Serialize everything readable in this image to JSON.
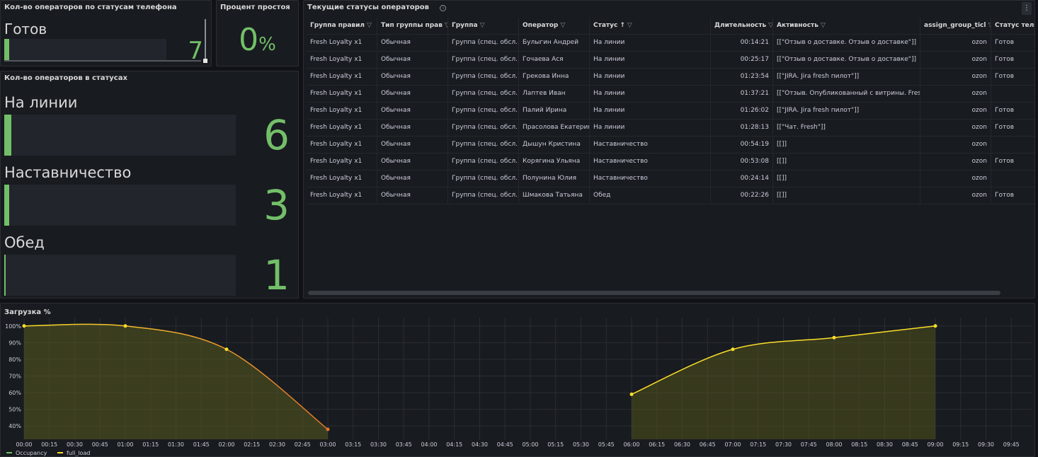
{
  "panels": {
    "phone_status": {
      "title": "Кол-во операторов по статусам телефона",
      "label": "Готов",
      "value": "7",
      "fill": 0.03
    },
    "idle": {
      "title": "Процент простоя",
      "value": "0",
      "unit": "%"
    },
    "status_counts": {
      "title": "Кол-во операторов в статусах",
      "items": [
        {
          "label": "На линии",
          "value": "6",
          "fill": 0.03
        },
        {
          "label": "Наставничество",
          "value": "3",
          "fill": 0.02
        },
        {
          "label": "Обед",
          "value": "1",
          "fill": 0.005
        }
      ]
    },
    "operators": {
      "title": "Текущие статусы операторов",
      "info_icon": "info-icon",
      "menu_icon": "kebab-menu-icon",
      "columns": [
        "Группа правил",
        "Тип группы прав",
        "Группа",
        "Оператор",
        "Статус",
        "Длительность",
        "Активность",
        "assign_group_ticl",
        "Статус теле"
      ],
      "rows": [
        [
          "Fresh Loyalty x1",
          "Обычная",
          "Группа (спец. обсл.)",
          "Булыгин Андрей",
          "На линии",
          "00:14:21",
          "[[\"Отзыв о доставке. Отзыв о доставке\"]]",
          "ozon",
          "Готов"
        ],
        [
          "Fresh Loyalty x1",
          "Обычная",
          "Группа (спец. обсл.)",
          "Гочаева Ася",
          "На линии",
          "00:25:17",
          "[[\"Отзыв о доставке. Отзыв о доставке\"]]",
          "ozon",
          "Готов"
        ],
        [
          "Fresh Loyalty x1",
          "Обычная",
          "Группа (спец. обсл.)",
          "Грекова Инна",
          "На линии",
          "01:23:54",
          "[[\"JIRA. Jira fresh пилот\"]]",
          "ozon",
          "Готов"
        ],
        [
          "Fresh Loyalty x1",
          "Обычная",
          "Группа (спец. обсл.)",
          "Лаптев Иван",
          "На линии",
          "01:37:21",
          "[[\"Отзыв. Опубликованный с витрины. Fresh",
          "ozon",
          ""
        ],
        [
          "Fresh Loyalty x1",
          "Обычная",
          "Группа (спец. обсл.)",
          "Палий Ирина",
          "На линии",
          "01:26:02",
          "[[\"JIRA. Jira fresh пилот\"]]",
          "ozon",
          "Готов"
        ],
        [
          "Fresh Loyalty x1",
          "Обычная",
          "Группа (спец. обсл.)",
          "Прасолова Екатерина",
          "На линии",
          "01:28:13",
          "[[\"Чат. Fresh\"]]",
          "ozon",
          "Готов"
        ],
        [
          "Fresh Loyalty x1",
          "Обычная",
          "Группа (спец. обсл.)",
          "Дышун Кристина",
          "Наставничество",
          "00:54:19",
          "[[]]",
          "ozon",
          ""
        ],
        [
          "Fresh Loyalty x1",
          "Обычная",
          "Группа (спец. обсл.)",
          "Корягина Ульяна",
          "Наставничество",
          "00:53:08",
          "[[]]",
          "ozon",
          "Готов"
        ],
        [
          "Fresh Loyalty x1",
          "Обычная",
          "Группа (спец. обсл.)",
          "Полунина Юлия",
          "Наставничество",
          "00:24:14",
          "[[]]",
          "ozon",
          ""
        ],
        [
          "Fresh Loyalty x1",
          "Обычная",
          "Группа (спец. обсл.)",
          "Шмакова Татьяна",
          "Обед",
          "00:22:26",
          "[[]]",
          "ozon",
          "Готов"
        ]
      ]
    },
    "load": {
      "title": "Загрузка %"
    }
  },
  "colors": {
    "green": "#73bf69",
    "yellow": "#fade2a",
    "orange": "#e0752d"
  },
  "chart_data": {
    "type": "area",
    "title": "Загрузка %",
    "xlabel": "",
    "ylabel": "",
    "x_ticks": [
      "00:00",
      "00:15",
      "00:30",
      "00:45",
      "01:00",
      "01:15",
      "01:30",
      "01:45",
      "02:00",
      "02:15",
      "02:30",
      "02:45",
      "03:00",
      "03:15",
      "03:30",
      "03:45",
      "04:00",
      "04:15",
      "04:30",
      "04:45",
      "05:00",
      "05:15",
      "05:30",
      "05:45",
      "06:00",
      "06:15",
      "06:30",
      "06:45",
      "07:00",
      "07:15",
      "07:30",
      "07:45",
      "08:00",
      "08:15",
      "08:30",
      "08:45",
      "09:00",
      "09:15",
      "09:30",
      "09:45"
    ],
    "y_ticks": [
      "40%",
      "50%",
      "60%",
      "70%",
      "80%",
      "90%",
      "100%"
    ],
    "ylim": [
      32,
      105
    ],
    "grid": true,
    "legend": "bottom-left",
    "series": [
      {
        "name": "Occupancy",
        "color": "#73bf69",
        "x": [],
        "values": []
      },
      {
        "name": "full_load",
        "color": "#fade2a",
        "segments": [
          {
            "x": [
              "00:00",
              "01:00",
              "02:00",
              "03:00"
            ],
            "values": [
              100,
              100,
              86,
              38
            ]
          },
          {
            "x": [
              "06:00",
              "07:00",
              "08:00",
              "09:00"
            ],
            "values": [
              59,
              86,
              93,
              100
            ]
          }
        ]
      }
    ]
  }
}
